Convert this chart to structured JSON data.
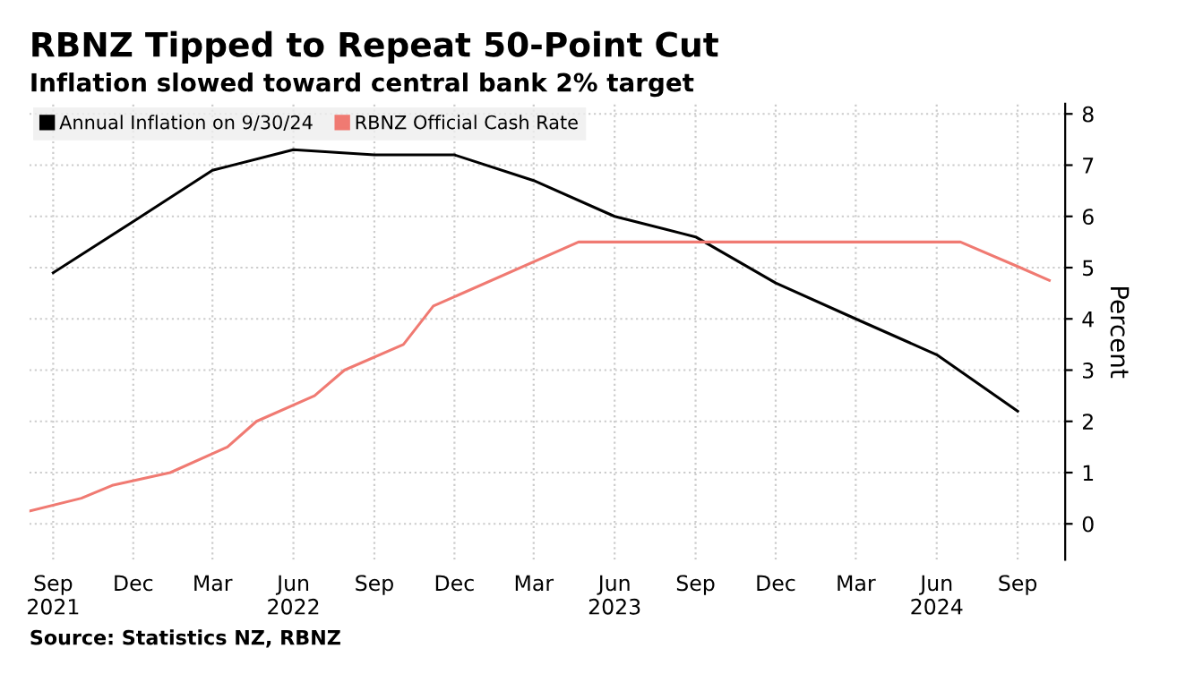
{
  "chart_data": {
    "type": "line",
    "title": "RBNZ Tipped to Repeat 50-Point Cut",
    "subtitle": "Inflation slowed toward central bank 2% target",
    "ylabel": "Percent",
    "annotations": [
      "Source: Statistics NZ, RBNZ"
    ],
    "series": [
      {
        "name": "Annual Inflation on 9/30/24",
        "color": "#000000",
        "x": [
          "2021-09-01",
          "2021-12-01",
          "2022-03-01",
          "2022-06-01",
          "2022-09-01",
          "2022-12-01",
          "2023-03-01",
          "2023-06-01",
          "2023-09-01",
          "2023-12-01",
          "2024-03-01",
          "2024-06-01",
          "2024-09-01"
        ],
        "values": [
          4.9,
          5.9,
          6.9,
          7.3,
          7.2,
          7.2,
          6.7,
          6.0,
          5.6,
          4.7,
          4.0,
          3.3,
          2.2
        ]
      },
      {
        "name": "RBNZ Official Cash Rate",
        "color": "#f07a72",
        "x": [
          "2021-08-05",
          "2021-10-03",
          "2021-11-07",
          "2022-01-12",
          "2022-03-18",
          "2022-04-20",
          "2022-06-25",
          "2022-07-29",
          "2022-10-04",
          "2022-11-07",
          "2023-04-21",
          "2024-06-28",
          "2024-09-04",
          "2024-10-07"
        ],
        "values": [
          0.25,
          0.5,
          0.75,
          1.0,
          1.5,
          2.0,
          2.5,
          3.0,
          3.5,
          4.25,
          5.5,
          5.5,
          5.0,
          4.75
        ]
      }
    ],
    "xlim": [
      "2021-08-05",
      "2024-10-25"
    ],
    "xticks": [
      {
        "value": "2021-09-01",
        "label": "Sep\n2021"
      },
      {
        "value": "2021-12-01",
        "label": "Dec"
      },
      {
        "value": "2022-03-01",
        "label": "Mar"
      },
      {
        "value": "2022-06-01",
        "label": "Jun\n2022"
      },
      {
        "value": "2022-09-01",
        "label": "Sep"
      },
      {
        "value": "2022-12-01",
        "label": "Dec"
      },
      {
        "value": "2023-03-01",
        "label": "Mar"
      },
      {
        "value": "2023-06-01",
        "label": "Jun\n2023"
      },
      {
        "value": "2023-09-01",
        "label": "Sep"
      },
      {
        "value": "2023-12-01",
        "label": "Dec"
      },
      {
        "value": "2024-03-01",
        "label": "Mar"
      },
      {
        "value": "2024-06-01",
        "label": "Jun\n2024"
      },
      {
        "value": "2024-09-01",
        "label": "Sep"
      }
    ],
    "ylim": [
      -0.7,
      8.2
    ],
    "yticks": [
      0,
      1,
      2,
      3,
      4,
      5,
      6,
      7,
      8
    ],
    "grid": true,
    "legend": "top left",
    "marker": "none",
    "line_style": "solid"
  }
}
